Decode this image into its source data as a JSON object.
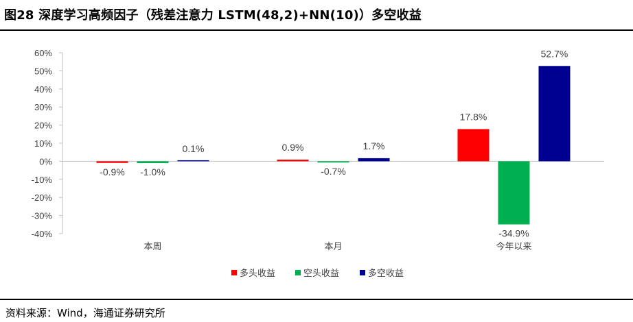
{
  "title": "图28 深度学习高频因子（残差注意力 LSTM(48,2)+NN(10)）多空收益",
  "source": "资料来源：Wind，海通证券研究所",
  "chart_data": {
    "type": "bar",
    "categories": [
      "本周",
      "本月",
      "今年以来"
    ],
    "series": [
      {
        "name": "多头收益",
        "color": "#FF0000",
        "values": [
          -0.9,
          0.9,
          17.8
        ],
        "labels": [
          "-0.9%",
          "0.9%",
          "17.8%"
        ]
      },
      {
        "name": "空头收益",
        "color": "#00B050",
        "values": [
          -1.0,
          -0.7,
          -34.9
        ],
        "labels": [
          "-1.0%",
          "-0.7%",
          "-34.9%"
        ]
      },
      {
        "name": "多空收益",
        "color": "#000090",
        "values": [
          0.1,
          1.7,
          52.7
        ],
        "labels": [
          "0.1%",
          "1.7%",
          "52.7%"
        ]
      }
    ],
    "ylim": [
      -40,
      60
    ],
    "yticks": [
      60,
      50,
      40,
      30,
      20,
      10,
      0,
      -10,
      -20,
      -30,
      -40
    ],
    "ytick_labels": [
      "60%",
      "50%",
      "40%",
      "30%",
      "20%",
      "10%",
      "0%",
      "-10%",
      "-20%",
      "-30%",
      "-40%"
    ],
    "legend": "bottom",
    "grid": false
  }
}
